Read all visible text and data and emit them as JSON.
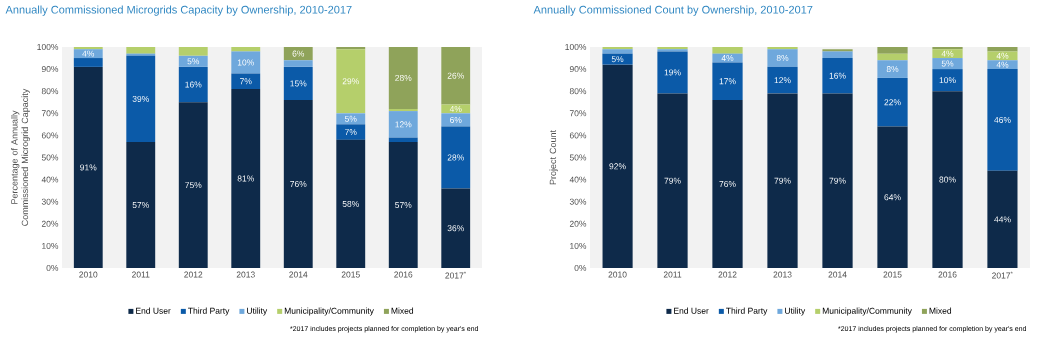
{
  "chart_data": [
    {
      "type": "bar",
      "stacked": true,
      "legend": "bottom",
      "title": "Annually Commissioned Microgrids Capacity by Ownership, 2010-2017",
      "ylabel": "Percentage of Annually Commissioned Microgrid Capacity",
      "categories": [
        "2010",
        "2011",
        "2012",
        "2013",
        "2014",
        "2015",
        "2016",
        "2017$^{*}$"
      ],
      "ylim": [
        0,
        100
      ],
      "yticks": [
        {
          "value": 0,
          "label": "0%"
        },
        {
          "value": 10,
          "label": "10%"
        },
        {
          "value": 20,
          "label": "20%"
        },
        {
          "value": 30,
          "label": "30%"
        },
        {
          "value": 40,
          "label": "40%"
        },
        {
          "value": 50,
          "label": "50%"
        },
        {
          "value": 60,
          "label": "60%"
        },
        {
          "value": 70,
          "label": "70%"
        },
        {
          "value": 80,
          "label": "80%"
        },
        {
          "value": 90,
          "label": "90%"
        },
        {
          "value": 100,
          "label": "100%"
        }
      ],
      "series": [
        {
          "name": "End User",
          "color": "#0e2a4a",
          "values": [
            91,
            57,
            75,
            81,
            76,
            58,
            57,
            36
          ],
          "value_labels": [
            "91%",
            "57%",
            "75%",
            "81%",
            "76%",
            "58%",
            "57%",
            "36%"
          ]
        },
        {
          "name": "Third Party",
          "color": "#0b5aa8",
          "values": [
            4,
            39,
            16,
            7,
            15,
            7,
            2,
            28
          ],
          "value_labels": [
            null,
            "39%",
            "16%",
            "7%",
            "15%",
            "7%",
            null,
            "28%"
          ]
        },
        {
          "name": "Utility",
          "color": "#6fa8dc",
          "values": [
            4,
            1,
            5,
            10,
            3,
            5,
            12,
            6
          ],
          "value_labels": [
            "4%",
            null,
            "5%",
            "10%",
            null,
            "5%",
            "12%",
            "6%"
          ]
        },
        {
          "name": "Municipality/Community",
          "color": "#b5cf6b",
          "values": [
            1,
            3,
            4,
            2,
            0,
            29,
            1,
            4
          ],
          "value_labels": [
            null,
            null,
            null,
            null,
            null,
            "29%",
            null,
            "4%"
          ]
        },
        {
          "name": "Mixed",
          "color": "#8fa35a",
          "values": [
            0,
            0,
            0,
            0,
            6,
            1,
            28,
            26
          ],
          "value_labels": [
            null,
            null,
            null,
            null,
            "6%",
            null,
            "28%",
            "26%"
          ]
        }
      ],
      "annotations": [
        "*2017 includes projects planned for completion by year's end"
      ]
    },
    {
      "type": "bar",
      "stacked": true,
      "legend": "bottom",
      "title": "Annually Commissioned Count by Ownership, 2010-2017",
      "ylabel": "Project Count",
      "categories": [
        "2010",
        "2011",
        "2012",
        "2013",
        "2014",
        "2015",
        "2016",
        "2017$^{*}$"
      ],
      "ylim": [
        0,
        100
      ],
      "yticks": [
        {
          "value": 0,
          "label": "0%"
        },
        {
          "value": 10,
          "label": "10%"
        },
        {
          "value": 20,
          "label": "20%"
        },
        {
          "value": 30,
          "label": "30%"
        },
        {
          "value": 40,
          "label": "40%"
        },
        {
          "value": 50,
          "label": "50%"
        },
        {
          "value": 60,
          "label": "60%"
        },
        {
          "value": 70,
          "label": "70%"
        },
        {
          "value": 80,
          "label": "80%"
        },
        {
          "value": 90,
          "label": "90%"
        },
        {
          "value": 100,
          "label": "100%"
        }
      ],
      "series": [
        {
          "name": "End User",
          "color": "#0e2a4a",
          "values": [
            92,
            79,
            76,
            79,
            79,
            64,
            80,
            44
          ],
          "value_labels": [
            "92%",
            "79%",
            "76%",
            "79%",
            "79%",
            "64%",
            "80%",
            "44%"
          ]
        },
        {
          "name": "Third Party",
          "color": "#0b5aa8",
          "values": [
            5,
            19,
            17,
            12,
            16,
            22,
            10,
            46
          ],
          "value_labels": [
            "5%",
            "19%",
            "17%",
            "12%",
            "16%",
            "22%",
            "10%",
            "46%"
          ]
        },
        {
          "name": "Utility",
          "color": "#6fa8dc",
          "values": [
            2,
            1,
            4,
            8,
            3,
            8,
            5,
            4
          ],
          "value_labels": [
            null,
            null,
            "4%",
            "8%",
            null,
            "8%",
            "5%",
            "4%"
          ]
        },
        {
          "name": "Municipality/Community",
          "color": "#b5cf6b",
          "values": [
            1,
            1,
            3,
            1,
            0,
            3,
            4,
            4
          ],
          "value_labels": [
            null,
            null,
            null,
            null,
            null,
            null,
            "4%",
            "4%"
          ]
        },
        {
          "name": "Mixed",
          "color": "#8fa35a",
          "values": [
            0,
            0,
            0,
            0,
            1,
            3,
            1,
            2
          ],
          "value_labels": [
            null,
            null,
            null,
            null,
            null,
            null,
            null,
            null
          ]
        }
      ],
      "annotations": [
        "*2017 includes projects planned for completion by year's end"
      ]
    }
  ]
}
